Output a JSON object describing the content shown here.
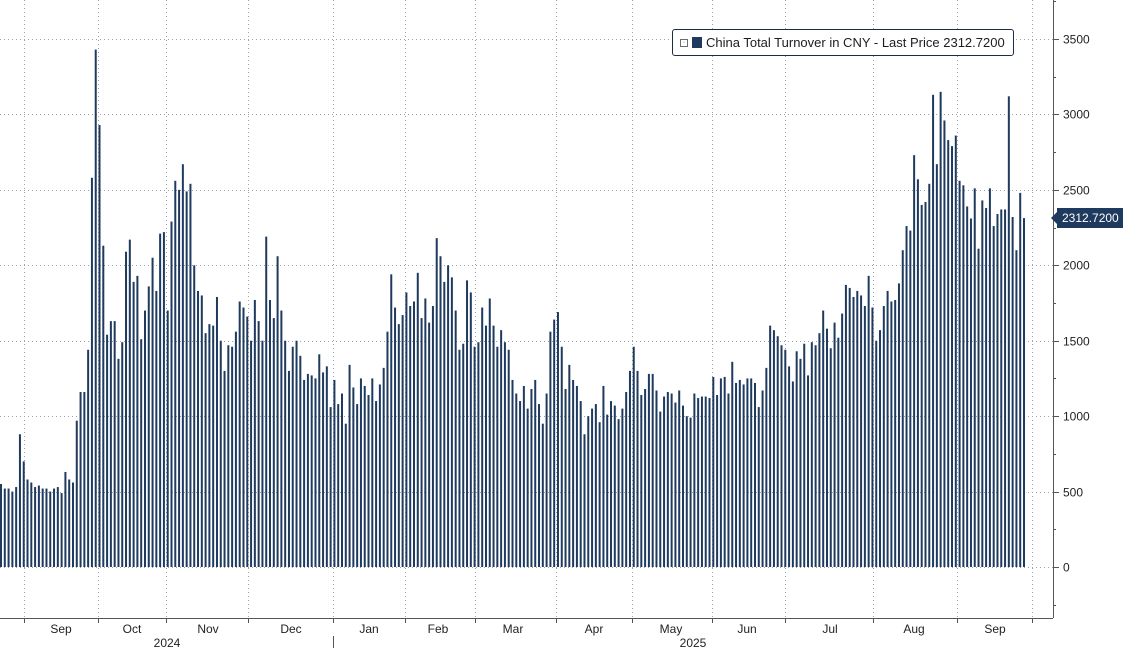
{
  "chart_data": {
    "type": "bar",
    "series": [
      {
        "name": "China Total Turnover in CNY"
      }
    ],
    "legend": {
      "label": "China Total Turnover in CNY - Last Price 2312.7200",
      "placement": "top-right"
    },
    "last_price_label": "2312.7200",
    "last_value": 2312.72,
    "ylim": [
      -350,
      3850
    ],
    "yticks": [
      {
        "value": 0,
        "label": "0"
      },
      {
        "value": 500,
        "label": "500"
      },
      {
        "value": 1000,
        "label": "1000"
      },
      {
        "value": 1500,
        "label": "1500"
      },
      {
        "value": 2000,
        "label": "2000"
      },
      {
        "value": 2500,
        "label": "2500"
      },
      {
        "value": 3000,
        "label": "3000"
      },
      {
        "value": 3500,
        "label": "3500"
      }
    ],
    "month_labels": [
      "Sep",
      "Oct",
      "Nov",
      "Dec",
      "Jan",
      "Feb",
      "Mar",
      "Apr",
      "May",
      "Jun",
      "Jul",
      "Aug",
      "Sep"
    ],
    "year_labels": [
      "2024",
      "2025"
    ],
    "grid": true,
    "values": [
      550,
      520,
      520,
      500,
      530,
      880,
      700,
      580,
      560,
      530,
      540,
      520,
      520,
      500,
      520,
      530,
      490,
      630,
      580,
      560,
      970,
      1160,
      1160,
      1440,
      2580,
      3430,
      2930,
      2130,
      1540,
      1630,
      1630,
      1380,
      1490,
      2090,
      2170,
      1890,
      1930,
      1510,
      1700,
      1860,
      2050,
      1830,
      2210,
      2220,
      1700,
      2290,
      2560,
      2500,
      2670,
      2490,
      2540,
      2000,
      1830,
      1800,
      1550,
      1610,
      1600,
      1790,
      1500,
      1300,
      1470,
      1460,
      1560,
      1760,
      1720,
      1660,
      1500,
      1770,
      1630,
      1500,
      2190,
      1770,
      1650,
      2060,
      1700,
      1500,
      1300,
      1460,
      1500,
      1400,
      1240,
      1280,
      1270,
      1250,
      1410,
      1290,
      1330,
      1060,
      1240,
      1080,
      1150,
      950,
      1340,
      1190,
      1080,
      1250,
      1200,
      1140,
      1250,
      1100,
      1210,
      1320,
      1560,
      1940,
      1720,
      1610,
      1670,
      1820,
      1730,
      1760,
      1950,
      1650,
      1780,
      1620,
      1730,
      2180,
      2060,
      1890,
      2000,
      1920,
      1700,
      1440,
      1480,
      1900,
      1820,
      1460,
      1490,
      1720,
      1600,
      1780,
      1600,
      1460,
      1570,
      1490,
      1440,
      1240,
      1150,
      1100,
      1200,
      1050,
      1180,
      1240,
      1080,
      950,
      1150,
      1560,
      1640,
      1690,
      1460,
      1180,
      1340,
      1240,
      1200,
      1100,
      880,
      1000,
      1050,
      1080,
      960,
      1200,
      1010,
      1100,
      1070,
      980,
      1050,
      1160,
      1300,
      1460,
      1300,
      1140,
      1180,
      1280,
      1280,
      1170,
      1030,
      1130,
      1160,
      1150,
      1090,
      1170,
      1070,
      1000,
      990,
      1150,
      1120,
      1130,
      1130,
      1120,
      1260,
      1140,
      1250,
      1260,
      1150,
      1360,
      1220,
      1240,
      1210,
      1250,
      1250,
      1220,
      1060,
      1170,
      1320,
      1600,
      1570,
      1530,
      1470,
      1440,
      1330,
      1230,
      1430,
      1380,
      1480,
      1270,
      1490,
      1470,
      1550,
      1700,
      1580,
      1450,
      1620,
      1520,
      1680,
      1870,
      1850,
      1790,
      1830,
      1800,
      1730,
      1930,
      1720,
      1500,
      1570,
      1730,
      1830,
      1760,
      1770,
      1880,
      2100,
      2260,
      2230,
      2730,
      2570,
      2400,
      2420,
      2540,
      3130,
      2670,
      3150,
      2960,
      2830,
      2790,
      2860,
      2560,
      2530,
      2390,
      2310,
      2510,
      2110,
      2430,
      2380,
      2510,
      2260,
      2340,
      2370,
      2370,
      3120,
      2320,
      2100,
      2480,
      2312.72
    ]
  }
}
